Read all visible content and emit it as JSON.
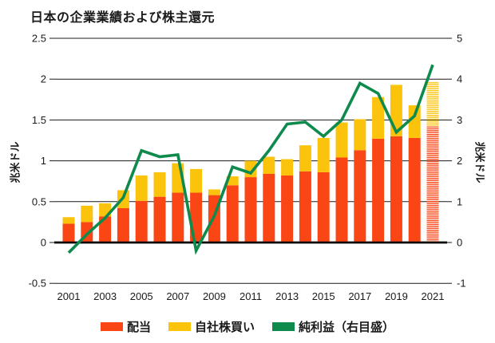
{
  "title": "日本の企業業績および株主還元",
  "chart_data": {
    "type": "bar+line",
    "categories": [
      2001,
      2002,
      2003,
      2004,
      2005,
      2006,
      2007,
      2008,
      2009,
      2010,
      2011,
      2012,
      2013,
      2014,
      2015,
      2016,
      2017,
      2018,
      2019,
      2020,
      2021
    ],
    "x_tick_labels": [
      "2001",
      "2003",
      "2005",
      "2007",
      "2009",
      "2011",
      "2013",
      "2015",
      "2017",
      "2019",
      "2021"
    ],
    "series": [
      {
        "name": "配当",
        "type": "bar",
        "stack": "returns",
        "color": "#fa4515",
        "values": [
          0.23,
          0.25,
          0.32,
          0.42,
          0.51,
          0.56,
          0.61,
          0.61,
          0.58,
          0.7,
          0.8,
          0.84,
          0.82,
          0.87,
          0.86,
          1.04,
          1.13,
          1.27,
          1.3,
          1.28,
          1.42
        ]
      },
      {
        "name": "自社株買い",
        "type": "bar",
        "stack": "returns",
        "color": "#fcc30d",
        "values": [
          0.08,
          0.2,
          0.16,
          0.22,
          0.31,
          0.3,
          0.36,
          0.29,
          0.07,
          0.11,
          0.2,
          0.21,
          0.2,
          0.32,
          0.42,
          0.43,
          0.38,
          0.51,
          0.63,
          0.4,
          0.55
        ]
      },
      {
        "name": "純利益（右目盛）",
        "type": "line",
        "axis": "right",
        "color": "#0e8a4d",
        "values": [
          -0.25,
          0.2,
          0.6,
          1.1,
          2.25,
          2.1,
          2.15,
          -0.2,
          0.65,
          1.85,
          1.7,
          2.25,
          2.9,
          2.95,
          2.6,
          3.0,
          3.9,
          3.65,
          2.7,
          3.1,
          4.35
        ]
      }
    ],
    "left_axis": {
      "label": "兆米ドル",
      "ticks": [
        "2.5",
        "2",
        "1.5",
        "1",
        "0.5",
        "0",
        "-0.5"
      ],
      "range": [
        -0.5,
        2.5
      ]
    },
    "right_axis": {
      "label": "兆米ドル",
      "ticks": [
        "5",
        "4",
        "3",
        "2",
        "1",
        "0",
        "-1"
      ],
      "range": [
        -1,
        5
      ]
    },
    "hatched_years": [
      2021
    ],
    "legend_position": "bottom",
    "grid": "horizontal"
  }
}
